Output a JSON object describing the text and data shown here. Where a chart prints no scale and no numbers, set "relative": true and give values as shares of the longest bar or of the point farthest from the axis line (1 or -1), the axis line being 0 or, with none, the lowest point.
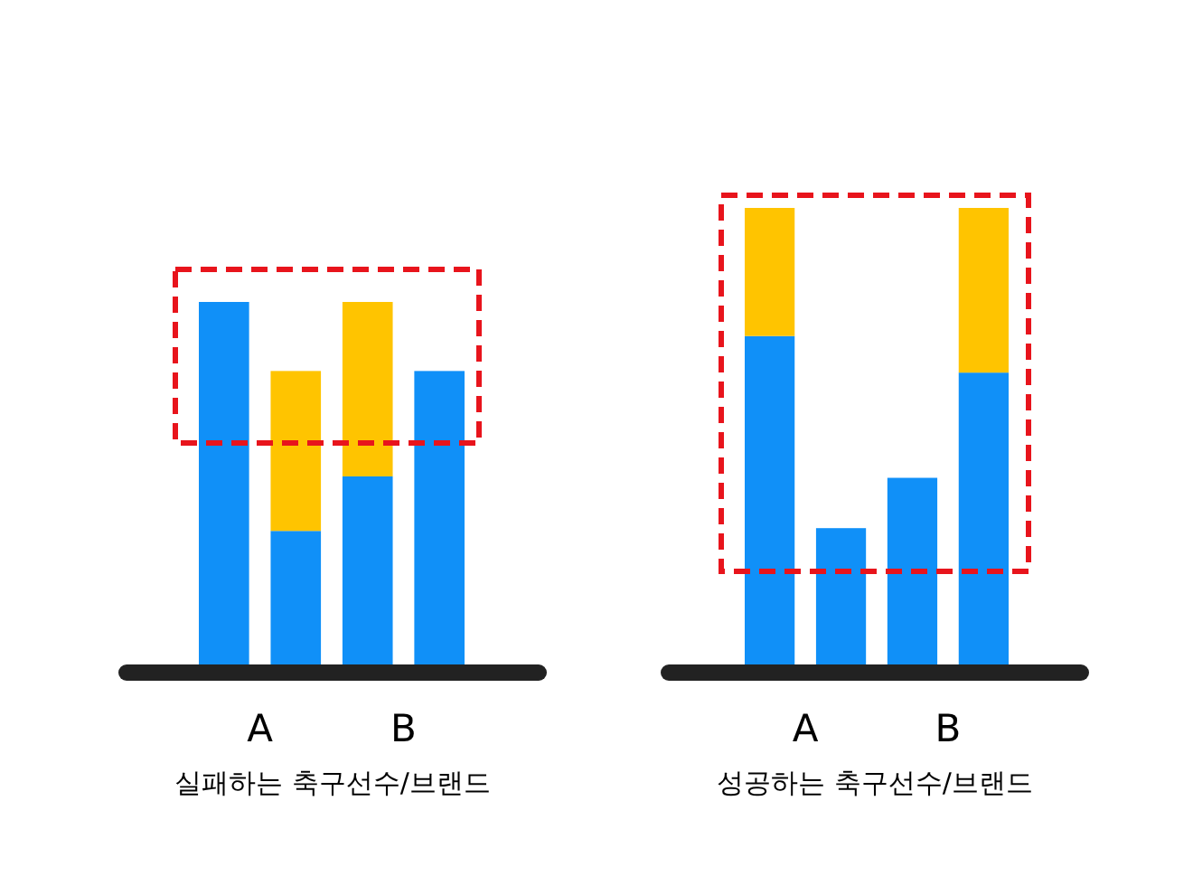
{
  "chart_data": [
    {
      "type": "bar",
      "relative": true,
      "stacked": true,
      "categories": [
        null,
        null,
        null,
        null
      ],
      "xlabel": "실패하는 축구선수/브랜드",
      "annotations": [
        "A",
        "B"
      ],
      "series": [
        {
          "color": "#1090f8",
          "values": [
            1,
            0.37,
            0.52,
            0.81
          ]
        },
        {
          "color": "#ffc400",
          "values": [
            0,
            0.44,
            0.48,
            0
          ]
        }
      ]
    },
    {
      "type": "bar",
      "relative": true,
      "stacked": true,
      "categories": [
        null,
        null,
        null,
        null
      ],
      "xlabel": "성공하는 축구선수/브랜드",
      "annotations": [
        "A",
        "B"
      ],
      "series": [
        {
          "color": "#1090f8",
          "values": [
            0.72,
            0.3,
            0.41,
            0.64
          ]
        },
        {
          "color": "#ffc400",
          "values": [
            0.28,
            0,
            0,
            0.36
          ]
        }
      ]
    }
  ]
}
